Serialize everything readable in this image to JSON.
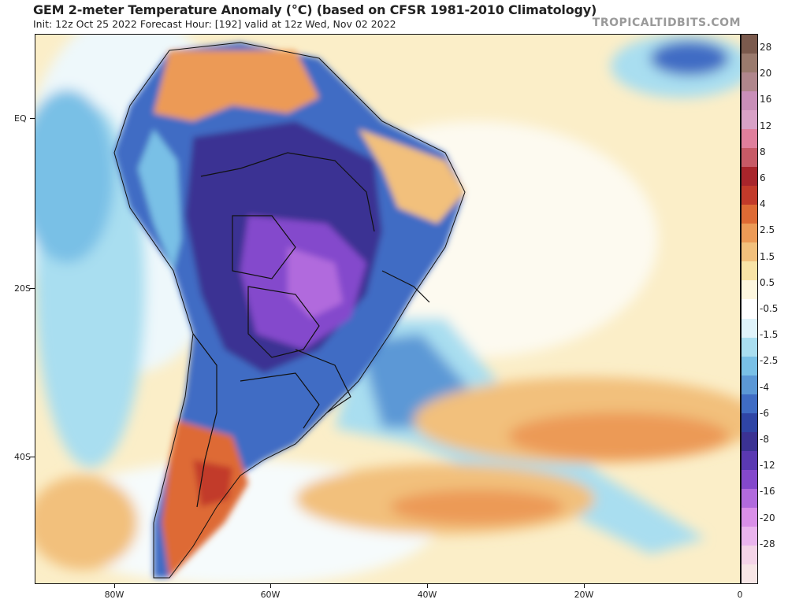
{
  "header": {
    "title": "GEM 2-meter Temperature Anomaly (°C) (based on CFSR 1981-2010 Climatology)",
    "subtitle": "Init: 12z Oct 25 2022   Forecast Hour: [192]   valid at 12z Wed, Nov 02 2022",
    "brand": "TROPICALTIDBITS.COM"
  },
  "axes": {
    "lat_labels": [
      "EQ",
      "20S",
      "40S"
    ],
    "lon_labels": [
      "80W",
      "60W",
      "40W",
      "20W",
      "0"
    ]
  },
  "colorbar": {
    "labels": [
      "28",
      "20",
      "16",
      "12",
      "8",
      "6",
      "4",
      "2.5",
      "1.5",
      "0.5",
      "-0.5",
      "-1.5",
      "-2.5",
      "-4",
      "-6",
      "-8",
      "-12",
      "-16",
      "-20",
      "-28"
    ],
    "colors": [
      "#7b5a4d",
      "#9a7a6d",
      "#b0868c",
      "#c98fb8",
      "#d8a1c6",
      "#e07f9c",
      "#c75a66",
      "#a8252b",
      "#c23a2a",
      "#de6a34",
      "#ec9a56",
      "#f2c07c",
      "#f8e3a6",
      "#fdf7de",
      "#ffffff",
      "#dff3fa",
      "#a9def0",
      "#79c0e6",
      "#5b98d6",
      "#3f6cc4",
      "#2f45a5",
      "#3b3293",
      "#5a39b2",
      "#8448cc",
      "#b16add",
      "#d98fe8",
      "#eab4ee",
      "#f4d4e8",
      "#f7e6e6"
    ]
  }
}
